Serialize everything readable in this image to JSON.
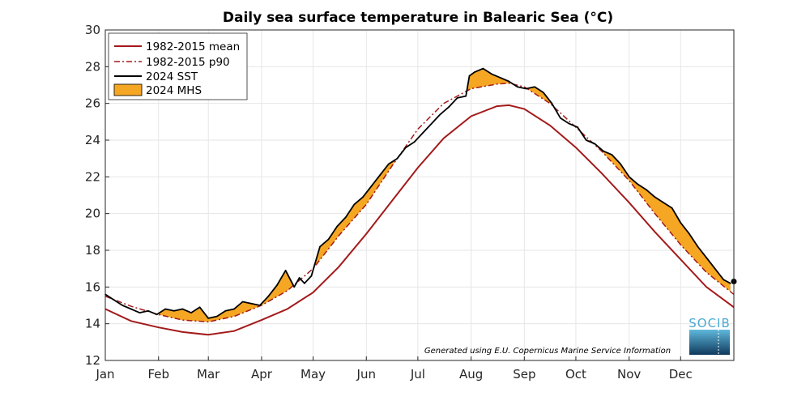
{
  "chart_data": {
    "type": "line",
    "title": "Daily sea surface temperature in Balearic Sea (°C)",
    "xlabel": "",
    "ylabel": "",
    "ylim": [
      12,
      30
    ],
    "yticks": [
      12,
      14,
      16,
      18,
      20,
      22,
      24,
      26,
      28,
      30
    ],
    "xlim": [
      0,
      366
    ],
    "xtick_labels": [
      "Jan",
      "Feb",
      "Mar",
      "Apr",
      "May",
      "Jun",
      "Jul",
      "Aug",
      "Sep",
      "Oct",
      "Nov",
      "Dec"
    ],
    "xtick_days": [
      0,
      31,
      60,
      91,
      121,
      152,
      182,
      213,
      244,
      274,
      305,
      335
    ],
    "grid": true,
    "legend_placement": "top-left",
    "series": [
      {
        "name": "1982-2015 mean",
        "color": "#a31a1a",
        "style": "solid",
        "x": [
          0,
          15,
          31,
          45,
          60,
          75,
          91,
          106,
          121,
          136,
          152,
          167,
          182,
          197,
          213,
          228,
          235,
          244,
          259,
          274,
          289,
          305,
          320,
          335,
          350,
          366
        ],
        "y": [
          14.8,
          14.15,
          13.8,
          13.55,
          13.4,
          13.6,
          14.2,
          14.8,
          15.7,
          17.1,
          18.9,
          20.7,
          22.5,
          24.1,
          25.3,
          25.85,
          25.9,
          25.7,
          24.8,
          23.6,
          22.2,
          20.6,
          19.0,
          17.5,
          16.0,
          14.9
        ]
      },
      {
        "name": "1982-2015 p90",
        "color": "#a31a1a",
        "style": "dashdot",
        "x": [
          0,
          15,
          31,
          45,
          60,
          75,
          91,
          106,
          121,
          136,
          152,
          167,
          182,
          197,
          213,
          228,
          235,
          244,
          259,
          274,
          289,
          305,
          320,
          335,
          350,
          366
        ],
        "y": [
          15.5,
          14.95,
          14.5,
          14.2,
          14.1,
          14.4,
          15.0,
          15.8,
          17.0,
          18.8,
          20.5,
          22.6,
          24.6,
          26.0,
          26.8,
          27.05,
          27.1,
          26.9,
          26.0,
          24.7,
          23.4,
          21.8,
          20.0,
          18.3,
          16.8,
          15.6
        ]
      },
      {
        "name": "2024 SST",
        "color": "#000000",
        "style": "solid",
        "x": [
          0,
          5,
          10,
          15,
          20,
          25,
          30,
          35,
          40,
          45,
          50,
          55,
          60,
          65,
          70,
          75,
          80,
          85,
          90,
          95,
          100,
          105,
          110,
          113,
          116,
          120,
          125,
          130,
          135,
          140,
          145,
          150,
          155,
          160,
          165,
          170,
          175,
          180,
          185,
          190,
          195,
          200,
          205,
          210,
          212,
          215,
          220,
          225,
          230,
          235,
          240,
          245,
          250,
          255,
          260,
          265,
          270,
          275,
          280,
          285,
          290,
          295,
          300,
          305,
          310,
          315,
          320,
          325,
          330,
          335,
          340,
          345,
          350,
          355,
          360,
          364
        ],
        "y": [
          15.6,
          15.3,
          15.0,
          14.8,
          14.6,
          14.7,
          14.5,
          14.8,
          14.7,
          14.8,
          14.6,
          14.9,
          14.3,
          14.4,
          14.7,
          14.8,
          15.2,
          15.1,
          15.0,
          15.5,
          16.1,
          16.9,
          16.0,
          16.5,
          16.2,
          16.6,
          18.2,
          18.6,
          19.3,
          19.8,
          20.5,
          20.9,
          21.5,
          22.1,
          22.7,
          23.0,
          23.6,
          23.9,
          24.4,
          24.9,
          25.4,
          25.8,
          26.3,
          26.4,
          27.5,
          27.7,
          27.9,
          27.6,
          27.4,
          27.2,
          26.9,
          26.8,
          26.9,
          26.6,
          26.0,
          25.2,
          24.9,
          24.7,
          24.0,
          23.8,
          23.4,
          23.2,
          22.7,
          22.0,
          21.6,
          21.3,
          20.9,
          20.6,
          20.3,
          19.5,
          18.9,
          18.2,
          17.6,
          17.0,
          16.4,
          16.2
        ]
      },
      {
        "name": "2024 MHS",
        "color": "#f5a623",
        "style": "fill",
        "description_of_fill": "area between 2024 SST and 1982-2015 p90 where SST exceeds p90"
      }
    ],
    "endpoint_marker": {
      "x": 366,
      "y": 16.3
    }
  },
  "credit": "Generated using E.U. Copernicus Marine Service Information",
  "logo": {
    "text": "SOCIB"
  }
}
